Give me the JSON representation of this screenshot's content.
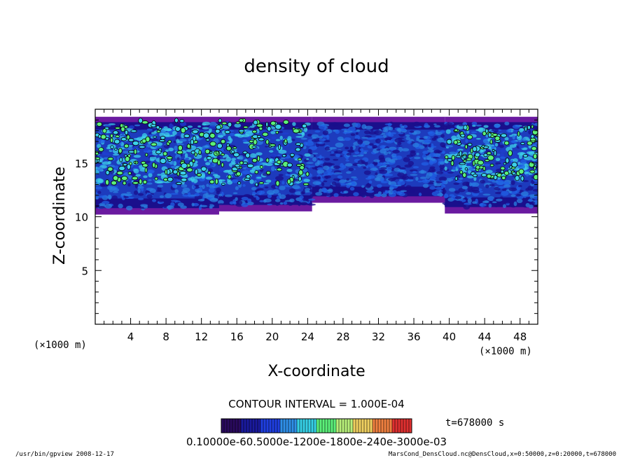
{
  "chart_data": {
    "type": "heatmap",
    "title": "density of cloud",
    "xlabel": "X-coordinate",
    "ylabel": "Z-coordinate",
    "xlim": [
      0,
      50
    ],
    "ylim": [
      0,
      20
    ],
    "x_ticks": [
      4,
      8,
      12,
      16,
      20,
      24,
      28,
      32,
      36,
      40,
      44,
      48
    ],
    "y_ticks": [
      5,
      10,
      15
    ],
    "x_unit": "(×1000 m)",
    "y_unit": "(×1000 m)",
    "cloud_layer": {
      "z_bottom": 10.5,
      "z_top": 19.3,
      "segments": [
        {
          "x": [
            0,
            14
          ],
          "z_bottom": 10.2
        },
        {
          "x": [
            14,
            24.5
          ],
          "z_bottom": 10.5
        },
        {
          "x": [
            24.5,
            39.5
          ],
          "z_bottom": 11.3
        },
        {
          "x": [
            39.5,
            50
          ],
          "z_bottom": 10.3
        }
      ],
      "high_density_regions": [
        {
          "x": [
            0,
            24
          ],
          "z": [
            13,
            19
          ]
        },
        {
          "x": [
            39.5,
            50
          ],
          "z": [
            13.5,
            18.5
          ]
        }
      ]
    },
    "contour_interval": "CONTOUR INTERVAL = 1.000E-04",
    "time": "t=678000 s",
    "colorbar": {
      "colors": [
        "#2a0a5e",
        "#1a1a9e",
        "#1f3fe0",
        "#2f8fe8",
        "#36d0e6",
        "#5cf07a",
        "#b8f07a",
        "#f0d060",
        "#f08040",
        "#e03030"
      ],
      "label_text": "0.10000e-60.5000e-1200e-1800e-240e-3000e-03"
    }
  },
  "footer": {
    "left": "/usr/bin/gpview   2008-12-17",
    "right": "MarsCond_DensCloud.nc@DensCloud,x=0:50000,z=0:20000,t=678000"
  },
  "colors": {
    "bg_dark": "#1a0f8c",
    "mid_blue": "#2060e6",
    "cyan": "#3cd0ea",
    "green": "#5cf07a",
    "purple": "#6a1aa0"
  }
}
